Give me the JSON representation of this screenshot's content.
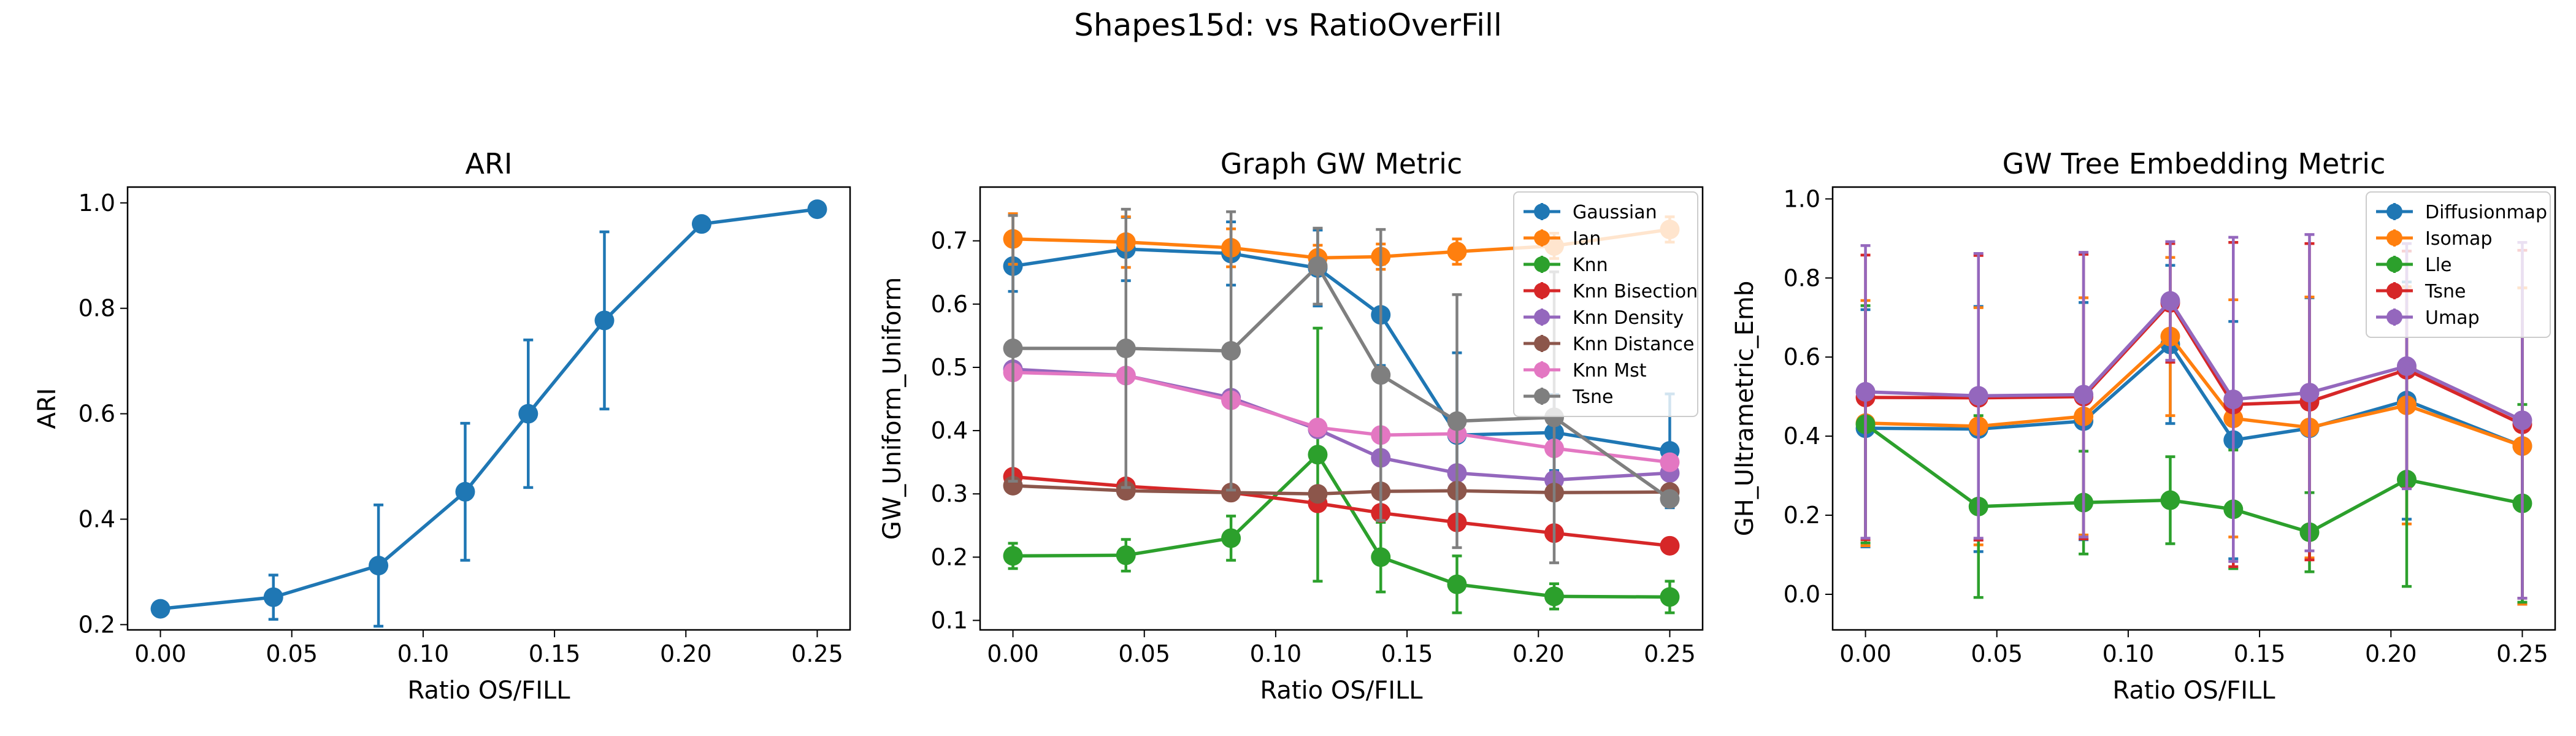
{
  "figure": {
    "suptitle": "Shapes15d: vs RatioOverFill"
  },
  "palette": {
    "blue": "#1f77b4",
    "orange": "#ff7f0e",
    "green": "#2ca02c",
    "red": "#d62728",
    "purple": "#9467bd",
    "brown": "#8c564b",
    "pink": "#e377c2",
    "gray": "#7f7f7f"
  },
  "chart_data": [
    {
      "type": "line",
      "title": "ARI",
      "xlabel": "Ratio OS/FILL",
      "ylabel": "ARI",
      "xlim": [
        -0.0125,
        0.2625
      ],
      "ylim": [
        0.19,
        1.03
      ],
      "xticks": [
        0.0,
        0.05,
        0.1,
        0.15,
        0.2,
        0.25
      ],
      "xtick_labels": [
        "0.00",
        "0.05",
        "0.10",
        "0.15",
        "0.20",
        "0.25"
      ],
      "yticks": [
        0.2,
        0.4,
        0.6,
        0.8,
        1.0
      ],
      "ytick_labels": [
        "0.2",
        "0.4",
        "0.6",
        "0.8",
        "1.0"
      ],
      "legend": "none",
      "x": [
        0.0,
        0.043,
        0.083,
        0.116,
        0.14,
        0.169,
        0.206,
        0.25
      ],
      "series": [
        {
          "color": "#1f77b4",
          "values": [
            0.23,
            0.252,
            0.312,
            0.452,
            0.6,
            0.777,
            0.96,
            0.988
          ],
          "errors": [
            0.0,
            0.042,
            0.115,
            0.13,
            0.14,
            0.168,
            0.0,
            0.0
          ]
        }
      ]
    },
    {
      "type": "line",
      "title": "Graph GW Metric",
      "xlabel": "Ratio OS/FILL",
      "ylabel": "GW_Uniform_Uniform",
      "xlim": [
        -0.0125,
        0.2625
      ],
      "ylim": [
        0.085,
        0.785
      ],
      "xticks": [
        0.0,
        0.05,
        0.1,
        0.15,
        0.2,
        0.25
      ],
      "xtick_labels": [
        "0.00",
        "0.05",
        "0.10",
        "0.15",
        "0.20",
        "0.25"
      ],
      "yticks": [
        0.1,
        0.2,
        0.3,
        0.4,
        0.5,
        0.6,
        0.7
      ],
      "ytick_labels": [
        "0.1",
        "0.2",
        "0.3",
        "0.4",
        "0.5",
        "0.6",
        "0.7"
      ],
      "legend": "top-right",
      "x": [
        0.0,
        0.043,
        0.083,
        0.116,
        0.14,
        0.169,
        0.206,
        0.25
      ],
      "series": [
        {
          "name": "Gaussian",
          "color": "#1f77b4",
          "values": [
            0.66,
            0.687,
            0.68,
            0.657,
            0.583,
            0.393,
            0.397,
            0.368
          ],
          "errors": [
            0.04,
            0.05,
            0.05,
            0.06,
            0.08,
            0.13,
            0.06,
            0.09
          ]
        },
        {
          "name": "Ian",
          "color": "#ff7f0e",
          "values": [
            0.703,
            0.698,
            0.689,
            0.673,
            0.675,
            0.683,
            0.692,
            0.718
          ],
          "errors": [
            0.04,
            0.04,
            0.03,
            0.02,
            0.02,
            0.02,
            0.02,
            0.02
          ]
        },
        {
          "name": "Knn",
          "color": "#2ca02c",
          "values": [
            0.202,
            0.203,
            0.23,
            0.362,
            0.2,
            0.157,
            0.138,
            0.137
          ],
          "errors": [
            0.02,
            0.025,
            0.035,
            0.2,
            0.055,
            0.045,
            0.02,
            0.025
          ]
        },
        {
          "name": "Knn Bisection",
          "color": "#d62728",
          "values": [
            0.327,
            0.312,
            0.302,
            0.285,
            0.27,
            0.255,
            0.238,
            0.218
          ],
          "errors": [
            0.0,
            0.0,
            0.0,
            0.0,
            0.0,
            0.0,
            0.0,
            0.0
          ]
        },
        {
          "name": "Knn Density",
          "color": "#9467bd",
          "values": [
            0.497,
            0.487,
            0.452,
            0.402,
            0.357,
            0.333,
            0.322,
            0.333
          ],
          "errors": [
            0.0,
            0.0,
            0.0,
            0.0,
            0.0,
            0.0,
            0.0,
            0.0
          ]
        },
        {
          "name": "Knn Distance",
          "color": "#8c564b",
          "values": [
            0.313,
            0.305,
            0.302,
            0.3,
            0.304,
            0.305,
            0.302,
            0.303
          ],
          "errors": [
            0.0,
            0.0,
            0.0,
            0.0,
            0.0,
            0.0,
            0.0,
            0.0
          ]
        },
        {
          "name": "Knn Mst",
          "color": "#e377c2",
          "values": [
            0.492,
            0.487,
            0.448,
            0.405,
            0.393,
            0.395,
            0.372,
            0.35
          ],
          "errors": [
            0.0,
            0.0,
            0.0,
            0.0,
            0.0,
            0.0,
            0.0,
            0.0
          ]
        },
        {
          "name": "Tsne",
          "color": "#7f7f7f",
          "values": [
            0.53,
            0.53,
            0.526,
            0.66,
            0.488,
            0.415,
            0.421,
            0.292
          ],
          "errors": [
            0.21,
            0.22,
            0.22,
            0.06,
            0.23,
            0.2,
            0.23,
            0.0
          ]
        }
      ]
    },
    {
      "type": "line",
      "title": "GW Tree Embedding Metric",
      "xlabel": "Ratio OS/FILL",
      "ylabel": "GH_Ultrametric_Emb",
      "xlim": [
        -0.0125,
        0.2625
      ],
      "ylim": [
        -0.09,
        1.03
      ],
      "xticks": [
        0.0,
        0.05,
        0.1,
        0.15,
        0.2,
        0.25
      ],
      "xtick_labels": [
        "0.00",
        "0.05",
        "0.10",
        "0.15",
        "0.20",
        "0.25"
      ],
      "yticks": [
        0.0,
        0.2,
        0.4,
        0.6,
        0.8,
        1.0
      ],
      "ytick_labels": [
        "0.0",
        "0.2",
        "0.4",
        "0.6",
        "0.8",
        "1.0"
      ],
      "legend": "top-right",
      "x": [
        0.0,
        0.043,
        0.083,
        0.116,
        0.14,
        0.169,
        0.206,
        0.25
      ],
      "series": [
        {
          "name": "Diffusionmap",
          "color": "#1f77b4",
          "values": [
            0.42,
            0.418,
            0.438,
            0.632,
            0.39,
            0.42,
            0.49,
            0.375
          ],
          "errors": [
            0.3,
            0.31,
            0.3,
            0.2,
            0.3,
            0.33,
            0.3,
            0.4
          ]
        },
        {
          "name": "Isomap",
          "color": "#ff7f0e",
          "values": [
            0.433,
            0.425,
            0.45,
            0.652,
            0.445,
            0.422,
            0.478,
            0.375
          ],
          "errors": [
            0.31,
            0.3,
            0.3,
            0.2,
            0.3,
            0.33,
            0.3,
            0.4
          ]
        },
        {
          "name": "Lle",
          "color": "#2ca02c",
          "values": [
            0.43,
            0.222,
            0.232,
            0.238,
            0.215,
            0.157,
            0.29,
            0.23
          ],
          "errors": [
            0.3,
            0.23,
            0.13,
            0.11,
            0.15,
            0.1,
            0.27,
            0.25
          ]
        },
        {
          "name": "Tsne",
          "color": "#d62728",
          "values": [
            0.498,
            0.497,
            0.5,
            0.737,
            0.48,
            0.487,
            0.568,
            0.43
          ],
          "errors": [
            0.36,
            0.36,
            0.36,
            0.15,
            0.41,
            0.4,
            0.3,
            0.44
          ]
        },
        {
          "name": "Umap",
          "color": "#9467bd",
          "values": [
            0.512,
            0.502,
            0.505,
            0.742,
            0.493,
            0.51,
            0.577,
            0.44
          ],
          "errors": [
            0.37,
            0.36,
            0.36,
            0.15,
            0.41,
            0.4,
            0.31,
            0.45
          ]
        }
      ]
    }
  ]
}
